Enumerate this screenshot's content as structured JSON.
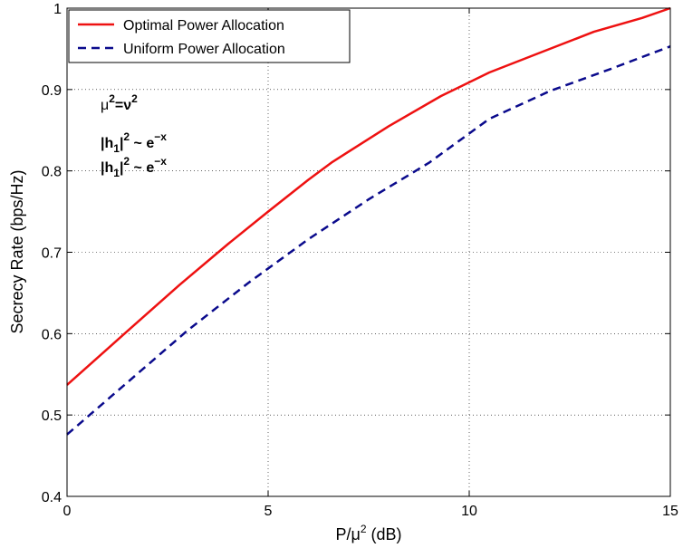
{
  "chart_data": {
    "type": "line",
    "title": "",
    "xlabel": "P/μ",
    "xlabel_sup": "2",
    "xlabel_suffix": " (dB)",
    "ylabel": "Secrecy Rate (bps/Hz)",
    "xlim": [
      0,
      15
    ],
    "ylim": [
      0.4,
      1.0
    ],
    "xticks": [
      0,
      5,
      10,
      15
    ],
    "xtick_labels": [
      "0",
      "5",
      "10",
      "15"
    ],
    "yticks": [
      0.4,
      0.5,
      0.6,
      0.7,
      0.8,
      0.9,
      1.0
    ],
    "ytick_labels": [
      "0.4",
      "0.5",
      "0.6",
      "0.7",
      "0.8",
      "0.9",
      "1"
    ],
    "grid": true,
    "legend_position": "top-left",
    "series": [
      {
        "name": "Optimal Power Allocation",
        "color": "#ee1111",
        "style": "solid",
        "x": [
          0,
          1.5,
          2.8,
          4.0,
          5.0,
          6.0,
          6.6,
          8.0,
          9.3,
          10.5,
          11.8,
          13.1,
          14.3,
          15
        ],
        "y": [
          0.537,
          0.603,
          0.66,
          0.71,
          0.75,
          0.789,
          0.811,
          0.855,
          0.892,
          0.921,
          0.946,
          0.971,
          0.988,
          1.0
        ]
      },
      {
        "name": "Uniform Power Allocation",
        "color": "#0a0a8c",
        "style": "dashed",
        "x": [
          0,
          1.5,
          3.0,
          4.5,
          6.0,
          7.5,
          9.0,
          10.5,
          12.0,
          13.5,
          15
        ],
        "y": [
          0.476,
          0.54,
          0.604,
          0.662,
          0.716,
          0.765,
          0.81,
          0.864,
          0.898,
          0.925,
          0.953
        ]
      }
    ],
    "annotations": {
      "mu_line": {
        "a": "μ",
        "a_sup": "2",
        "eq": "=ν",
        "b_sup": "2"
      },
      "h1_line": {
        "pre": "|h",
        "sub": "1",
        "post": "|",
        "sup": "2",
        "tilde": " ~ e",
        "exp": "−x"
      },
      "h2_line": {
        "pre": "|h",
        "sub": "1",
        "post": "|",
        "sup": "2",
        "tilde": " ~ e",
        "exp": "−x"
      }
    }
  }
}
